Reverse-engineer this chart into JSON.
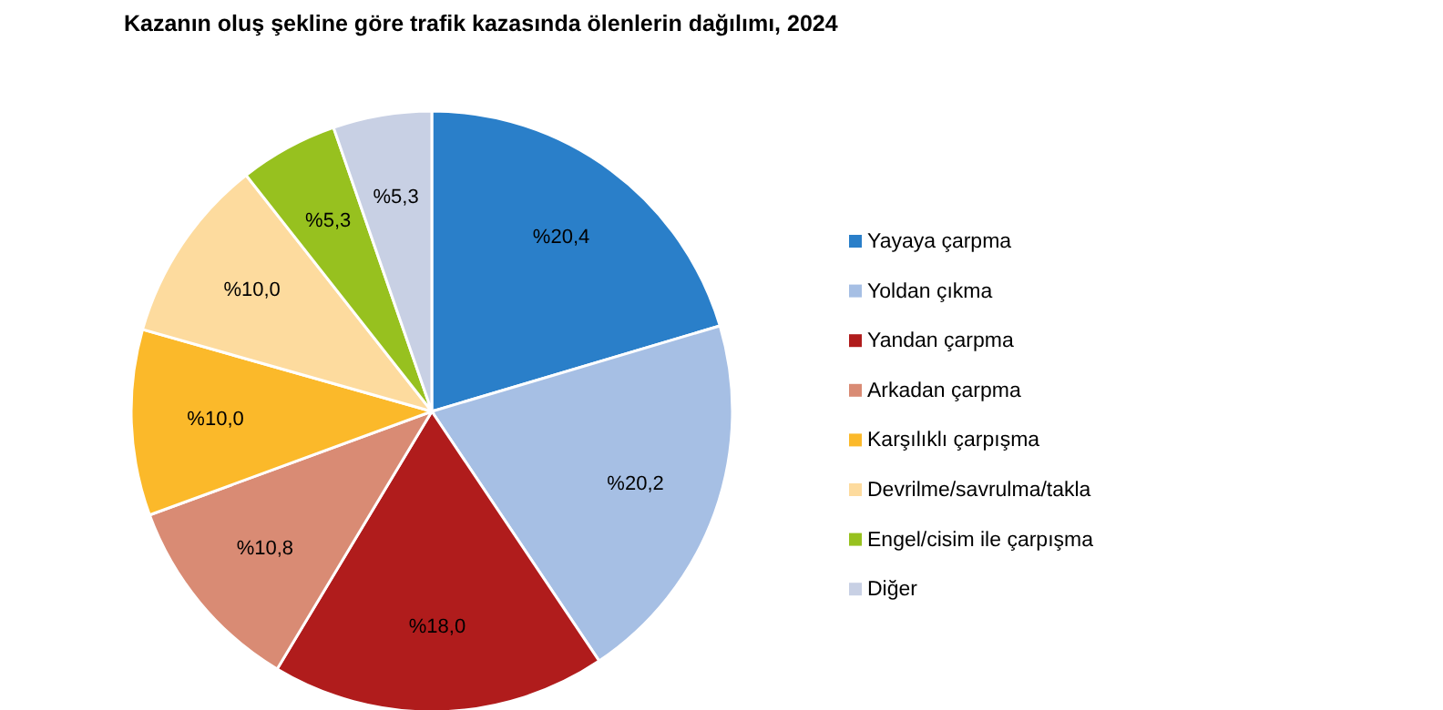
{
  "chart_data": {
    "type": "pie",
    "title": "Kazanın oluş şekline göre trafik kazasında ölenlerin dağılımı, 2024",
    "categories": [
      "Yayaya çarpma",
      "Yoldan çıkma",
      "Yandan çarpma",
      "Arkadan çarpma",
      "Karşılıklı çarpışma",
      "Devrilme/savrulma/takla",
      "Engel/cisim ile çarpışma",
      "Diğer"
    ],
    "values": [
      20.4,
      20.2,
      18.0,
      10.8,
      10.0,
      10.0,
      5.3,
      5.3
    ],
    "value_labels": [
      "%20,4",
      "%20,2",
      "%18,0",
      "%10,8",
      "%10,0",
      "%10,0",
      "%5,3",
      "%5,3"
    ],
    "colors": [
      "#2a7fc9",
      "#a6bfe4",
      "#b01c1c",
      "#d98b74",
      "#fbb92a",
      "#fddb9e",
      "#97c11f",
      "#c8d0e4"
    ],
    "legend": "right"
  }
}
